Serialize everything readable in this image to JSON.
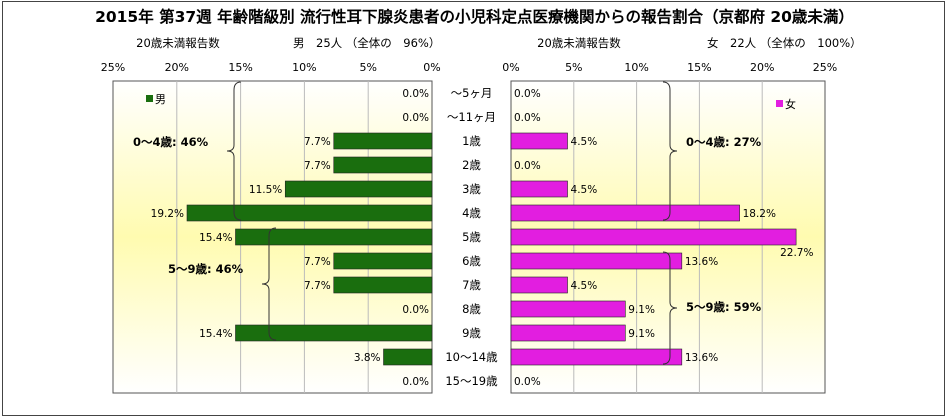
{
  "title": "2015年 第37週 年齢階級別 流行性耳下腺炎患者の小児科定点医療機関からの報告割合（京都府 20歳未満）",
  "male_header": {
    "label": "20歳未満報告数",
    "summary": "男　25人 （全体の　96%）"
  },
  "female_header": {
    "label": "20歳未満報告数",
    "summary": "女　22人 （全体の　100%）"
  },
  "colors": {
    "male": "#1a6e0e",
    "female": "#e21ee0",
    "plot_bg_center": "#fffbb0",
    "plot_bg_edge": "#ffffff"
  },
  "chart_data": {
    "type": "bar",
    "orientation": "horizontal-butterfly",
    "categories": [
      "～5ヶ月",
      "～11ヶ月",
      "1歳",
      "2歳",
      "3歳",
      "4歳",
      "5歳",
      "6歳",
      "7歳",
      "8歳",
      "9歳",
      "10～14歳",
      "15～19歳"
    ],
    "series": [
      {
        "name": "男",
        "values": [
          0.0,
          0.0,
          7.7,
          7.7,
          11.5,
          19.2,
          15.4,
          7.7,
          7.7,
          0.0,
          15.4,
          3.8,
          0.0
        ],
        "labels": [
          "0.0%",
          "0.0%",
          "7.7%",
          "7.7%",
          "11.5%",
          "19.2%",
          "15.4%",
          "7.7%",
          "7.7%",
          "0.0%",
          "15.4%",
          "3.8%",
          "0.0%"
        ]
      },
      {
        "name": "女",
        "values": [
          0.0,
          0.0,
          4.5,
          0.0,
          4.5,
          18.2,
          22.7,
          13.6,
          4.5,
          9.1,
          9.1,
          13.6,
          0.0
        ],
        "labels": [
          "0.0%",
          "0.0%",
          "4.5%",
          "0.0%",
          "4.5%",
          "18.2%",
          "22.7%",
          "13.6%",
          "4.5%",
          "9.1%",
          "9.1%",
          "13.6%",
          "0.0%"
        ]
      }
    ],
    "xlim": [
      0,
      25
    ],
    "male_ticks": [
      "25%",
      "20%",
      "15%",
      "10%",
      "5%",
      "0%"
    ],
    "female_ticks": [
      "0%",
      "5%",
      "10%",
      "15%",
      "20%",
      "25%"
    ],
    "grid": true,
    "legend": {
      "male": "男",
      "female": "女"
    },
    "annotations": {
      "male_0_4": "0～4歳: 46%",
      "male_5_9": "5～9歳: 46%",
      "female_0_4": "0～4歳: 27%",
      "female_5_9": "5～9歳: 59%"
    }
  }
}
